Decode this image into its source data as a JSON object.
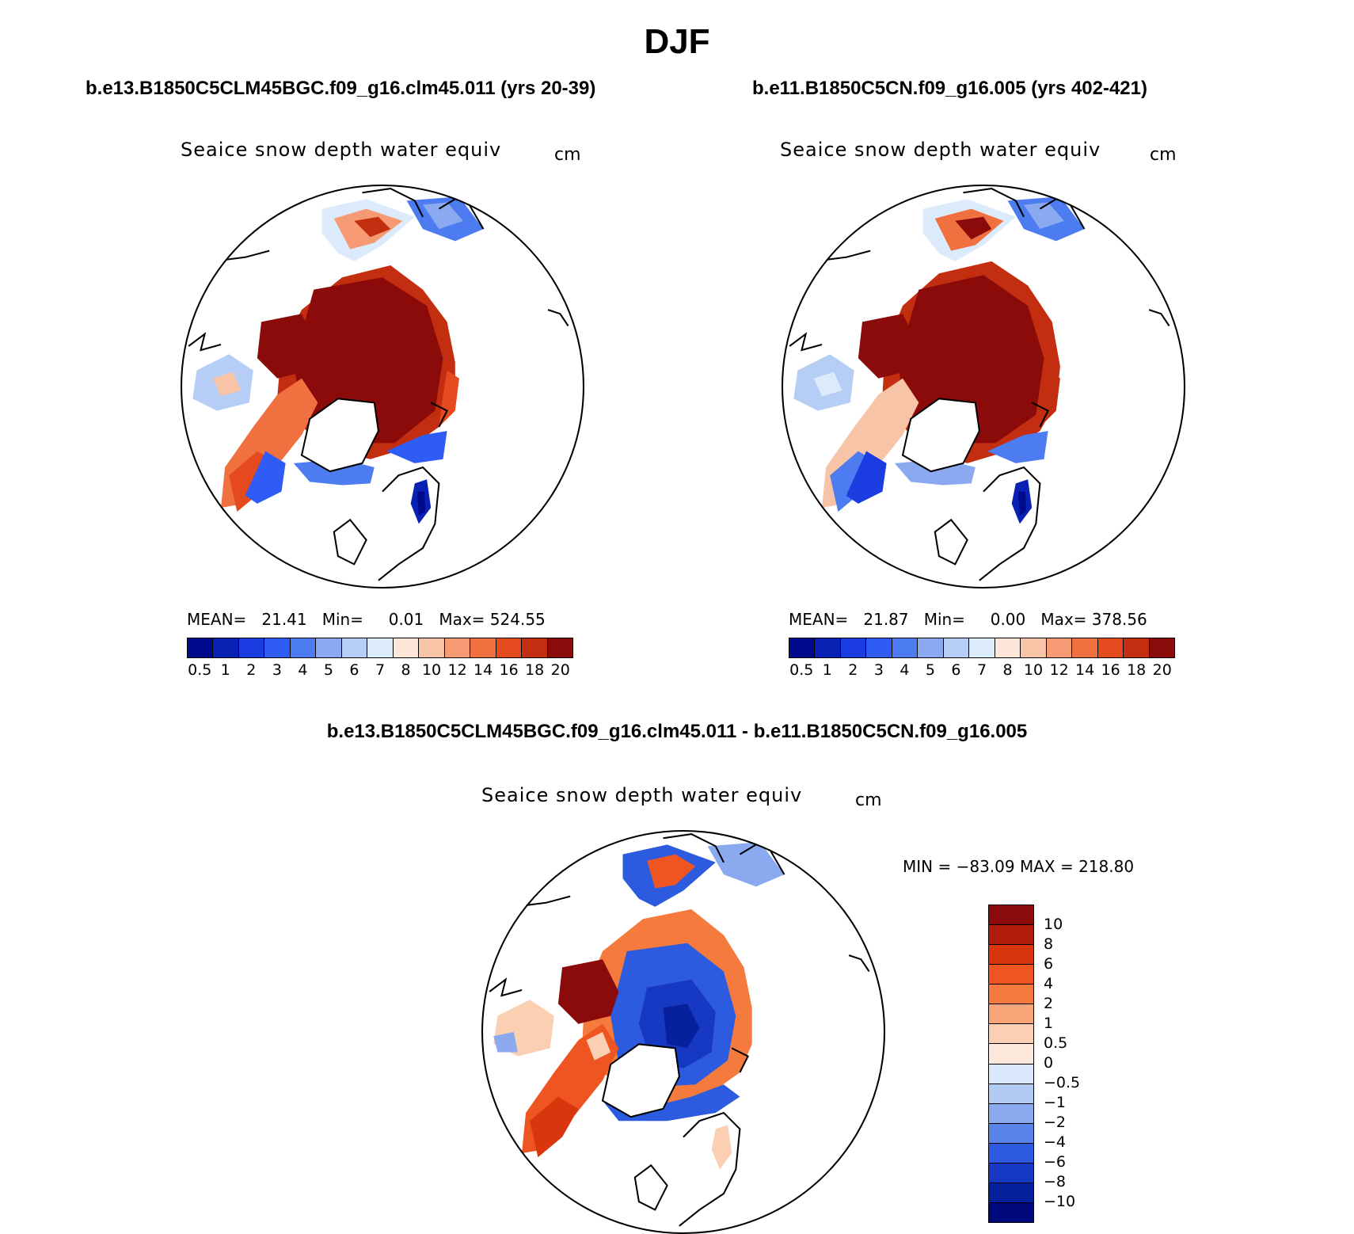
{
  "title": "DJF",
  "colors": {
    "abs_scale": [
      "#000a8c",
      "#0a22b4",
      "#1a3ce0",
      "#2f5cf5",
      "#4d7cf0",
      "#8aa9f0",
      "#b6cdf5",
      "#dcebfb",
      "#fde6d8",
      "#f8c4a8",
      "#f59a72",
      "#f07040",
      "#e44a1e",
      "#c42e10",
      "#8b0a0a"
    ],
    "diff_scale": [
      "#8b0a0a",
      "#b01c0c",
      "#d9360e",
      "#ee5520",
      "#f57a3e",
      "#f8a57a",
      "#fbcfb2",
      "#fde9dc",
      "#dbe8fb",
      "#b2cbf3",
      "#8aa9ef",
      "#5b84eb",
      "#2d5be0",
      "#1638c2",
      "#07209c",
      "#000a7c"
    ],
    "land": "#ffffff",
    "coast": "#000000"
  },
  "panel_left": {
    "case": "b.e13.B1850C5CLM45BGC.f09_g16.clm45.011 (yrs 20-39)",
    "variable": "Seaice snow depth water equiv",
    "units": "cm",
    "stats": "MEAN=   21.41   Min=     0.01   Max= 524.55",
    "colorbar_labels": [
      "0.5",
      "1",
      "2",
      "3",
      "4",
      "5",
      "6",
      "7",
      "8",
      "10",
      "12",
      "14",
      "16",
      "18",
      "20"
    ]
  },
  "panel_right": {
    "case": "b.e11.B1850C5CN.f09_g16.005 (yrs 402-421)",
    "variable": "Seaice snow depth water equiv",
    "units": "cm",
    "stats": "MEAN=   21.87   Min=     0.00   Max= 378.56",
    "colorbar_labels": [
      "0.5",
      "1",
      "2",
      "3",
      "4",
      "5",
      "6",
      "7",
      "8",
      "10",
      "12",
      "14",
      "16",
      "18",
      "20"
    ]
  },
  "panel_diff": {
    "case": "b.e13.B1850C5CLM45BGC.f09_g16.clm45.011 - b.e11.B1850C5CN.f09_g16.005",
    "variable": "Seaice snow depth water equiv",
    "units": "cm",
    "stats": "MIN = −83.09 MAX = 218.80",
    "colorbar_labels": [
      "10",
      "8",
      "6",
      "4",
      "2",
      "1",
      "0.5",
      "0",
      "−0.5",
      "−1",
      "−2",
      "−4",
      "−6",
      "−8",
      "−10"
    ]
  }
}
